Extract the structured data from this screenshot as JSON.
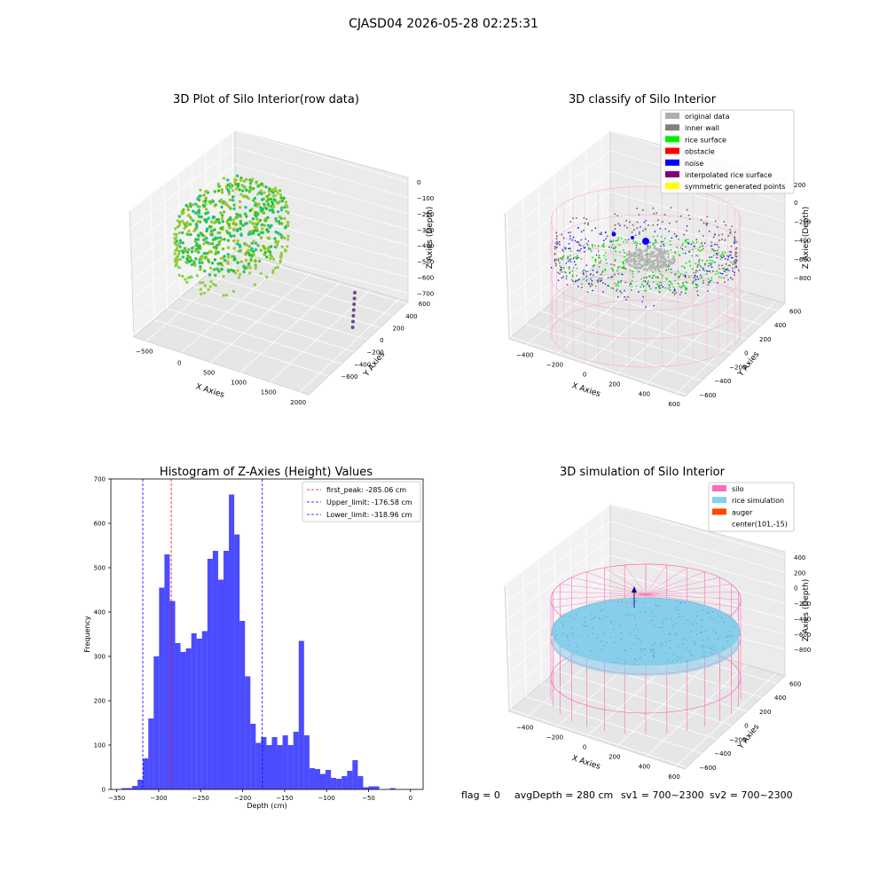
{
  "figure": {
    "suptitle": "CJASD04 2026-05-28 02:25:31",
    "status_line": {
      "flag": "flag = 0",
      "avg_depth": "avgDepth = 280 cm",
      "sv1": "sv1 = 700~2300",
      "sv2": "sv2 = 700~2300"
    }
  },
  "panels": {
    "raw": {
      "title": "3D Plot of Silo Interior(row data)",
      "xlabel": "X Axies",
      "ylabel": "Y Axies",
      "zlabel": "Z Axies (Depth)",
      "xticks": [
        "−500",
        "0",
        "500",
        "1000",
        "1500",
        "2000"
      ],
      "yticks": [
        "600",
        "400",
        "200",
        "0",
        "−200",
        "−400",
        "−600"
      ],
      "zticks": [
        "0",
        "−100",
        "−200",
        "−300",
        "−400",
        "−500",
        "−600",
        "−700"
      ]
    },
    "classify": {
      "title": "3D classify of Silo Interior",
      "xlabel": "X Axies",
      "ylabel": "Y Axies",
      "zlabel": "Z Axies (Depth)",
      "xticks": [
        "−400",
        "−200",
        "0",
        "200",
        "400",
        "600"
      ],
      "yticks": [
        "600",
        "400",
        "200",
        "0",
        "−200",
        "−400",
        "−600"
      ],
      "zticks": [
        "200",
        "0",
        "−200",
        "−400",
        "−600",
        "−800"
      ],
      "legend": [
        {
          "label": "original data",
          "color": "#b0b0b0"
        },
        {
          "label": "inner wall",
          "color": "#808080"
        },
        {
          "label": "rice surface",
          "color": "#00ee00"
        },
        {
          "label": "obstacle",
          "color": "#ff0000"
        },
        {
          "label": "noise",
          "color": "#0000ff"
        },
        {
          "label": "interpolated rice surface",
          "color": "#800080"
        },
        {
          "label": "symmetric generated points",
          "color": "#ffff00"
        }
      ]
    },
    "simulation": {
      "title": "3D simulation of Silo Interior",
      "xlabel": "X Axies",
      "ylabel": "Y Axies",
      "zlabel": "Z Axies (Depth)",
      "xticks": [
        "−400",
        "−200",
        "0",
        "200",
        "400",
        "600"
      ],
      "yticks": [
        "600",
        "400",
        "200",
        "0",
        "−200",
        "−400",
        "−600"
      ],
      "zticks": [
        "400",
        "200",
        "0",
        "−200",
        "−400",
        "−600",
        "−800"
      ],
      "legend": [
        {
          "label": "silo",
          "color": "#ff69b4"
        },
        {
          "label": "rice simulation",
          "color": "#87ceeb"
        },
        {
          "label": "auger",
          "color": "#ff4500"
        },
        {
          "label": "center(101,-15)",
          "color": ""
        }
      ]
    }
  },
  "chart_data": {
    "type": "bar",
    "title": "Histogram of Z-Axies (Height) Values",
    "xlabel": "Depth (cm)",
    "ylabel": "Frequency",
    "xlim": [
      -350,
      0
    ],
    "ylim": [
      0,
      700
    ],
    "xticks": [
      -350,
      -300,
      -250,
      -200,
      -150,
      -100,
      -50,
      0
    ],
    "yticks": [
      0,
      100,
      200,
      300,
      400,
      500,
      600,
      700
    ],
    "bar_color": "#0000ff",
    "bin_width": 6.4,
    "bins": [
      {
        "x0": -344.4,
        "value": 3
      },
      {
        "x0": -338.0,
        "value": 3
      },
      {
        "x0": -331.6,
        "value": 8
      },
      {
        "x0": -325.2,
        "value": 22
      },
      {
        "x0": -318.8,
        "value": 70
      },
      {
        "x0": -312.4,
        "value": 160
      },
      {
        "x0": -306.0,
        "value": 300
      },
      {
        "x0": -299.6,
        "value": 455
      },
      {
        "x0": -293.2,
        "value": 530
      },
      {
        "x0": -286.8,
        "value": 425
      },
      {
        "x0": -280.4,
        "value": 330
      },
      {
        "x0": -274.0,
        "value": 310
      },
      {
        "x0": -267.6,
        "value": 318
      },
      {
        "x0": -261.2,
        "value": 352
      },
      {
        "x0": -254.8,
        "value": 340
      },
      {
        "x0": -248.4,
        "value": 357
      },
      {
        "x0": -242.0,
        "value": 520
      },
      {
        "x0": -235.6,
        "value": 538
      },
      {
        "x0": -229.2,
        "value": 473
      },
      {
        "x0": -222.8,
        "value": 538
      },
      {
        "x0": -216.4,
        "value": 665
      },
      {
        "x0": -210.0,
        "value": 575
      },
      {
        "x0": -203.6,
        "value": 380
      },
      {
        "x0": -197.2,
        "value": 255
      },
      {
        "x0": -190.8,
        "value": 148
      },
      {
        "x0": -184.4,
        "value": 105
      },
      {
        "x0": -178.0,
        "value": 118
      },
      {
        "x0": -171.6,
        "value": 100
      },
      {
        "x0": -165.2,
        "value": 118
      },
      {
        "x0": -158.8,
        "value": 100
      },
      {
        "x0": -152.4,
        "value": 122
      },
      {
        "x0": -146.0,
        "value": 100
      },
      {
        "x0": -139.6,
        "value": 130
      },
      {
        "x0": -133.2,
        "value": 335
      },
      {
        "x0": -126.8,
        "value": 122
      },
      {
        "x0": -120.4,
        "value": 48
      },
      {
        "x0": -114.0,
        "value": 46
      },
      {
        "x0": -107.6,
        "value": 35
      },
      {
        "x0": -101.2,
        "value": 44
      },
      {
        "x0": -94.8,
        "value": 26
      },
      {
        "x0": -88.4,
        "value": 24
      },
      {
        "x0": -82.0,
        "value": 30
      },
      {
        "x0": -75.6,
        "value": 42
      },
      {
        "x0": -69.2,
        "value": 66
      },
      {
        "x0": -62.8,
        "value": 30
      },
      {
        "x0": -56.4,
        "value": 5
      },
      {
        "x0": -50.0,
        "value": 7
      },
      {
        "x0": -43.6,
        "value": 7
      },
      {
        "x0": -37.2,
        "value": 0
      },
      {
        "x0": -30.8,
        "value": 0
      },
      {
        "x0": -24.4,
        "value": 3
      }
    ],
    "vlines": [
      {
        "x": -285.06,
        "color": "#ff0000",
        "label": "first_peak: -285.06 cm"
      },
      {
        "x": -176.58,
        "color": "#0000ff",
        "label": "Upper_limit: -176.58 cm"
      },
      {
        "x": -318.96,
        "color": "#0000ff",
        "label": "Lower_limit: -318.96 cm"
      }
    ],
    "legend_placement": "top-right",
    "grid": false
  }
}
